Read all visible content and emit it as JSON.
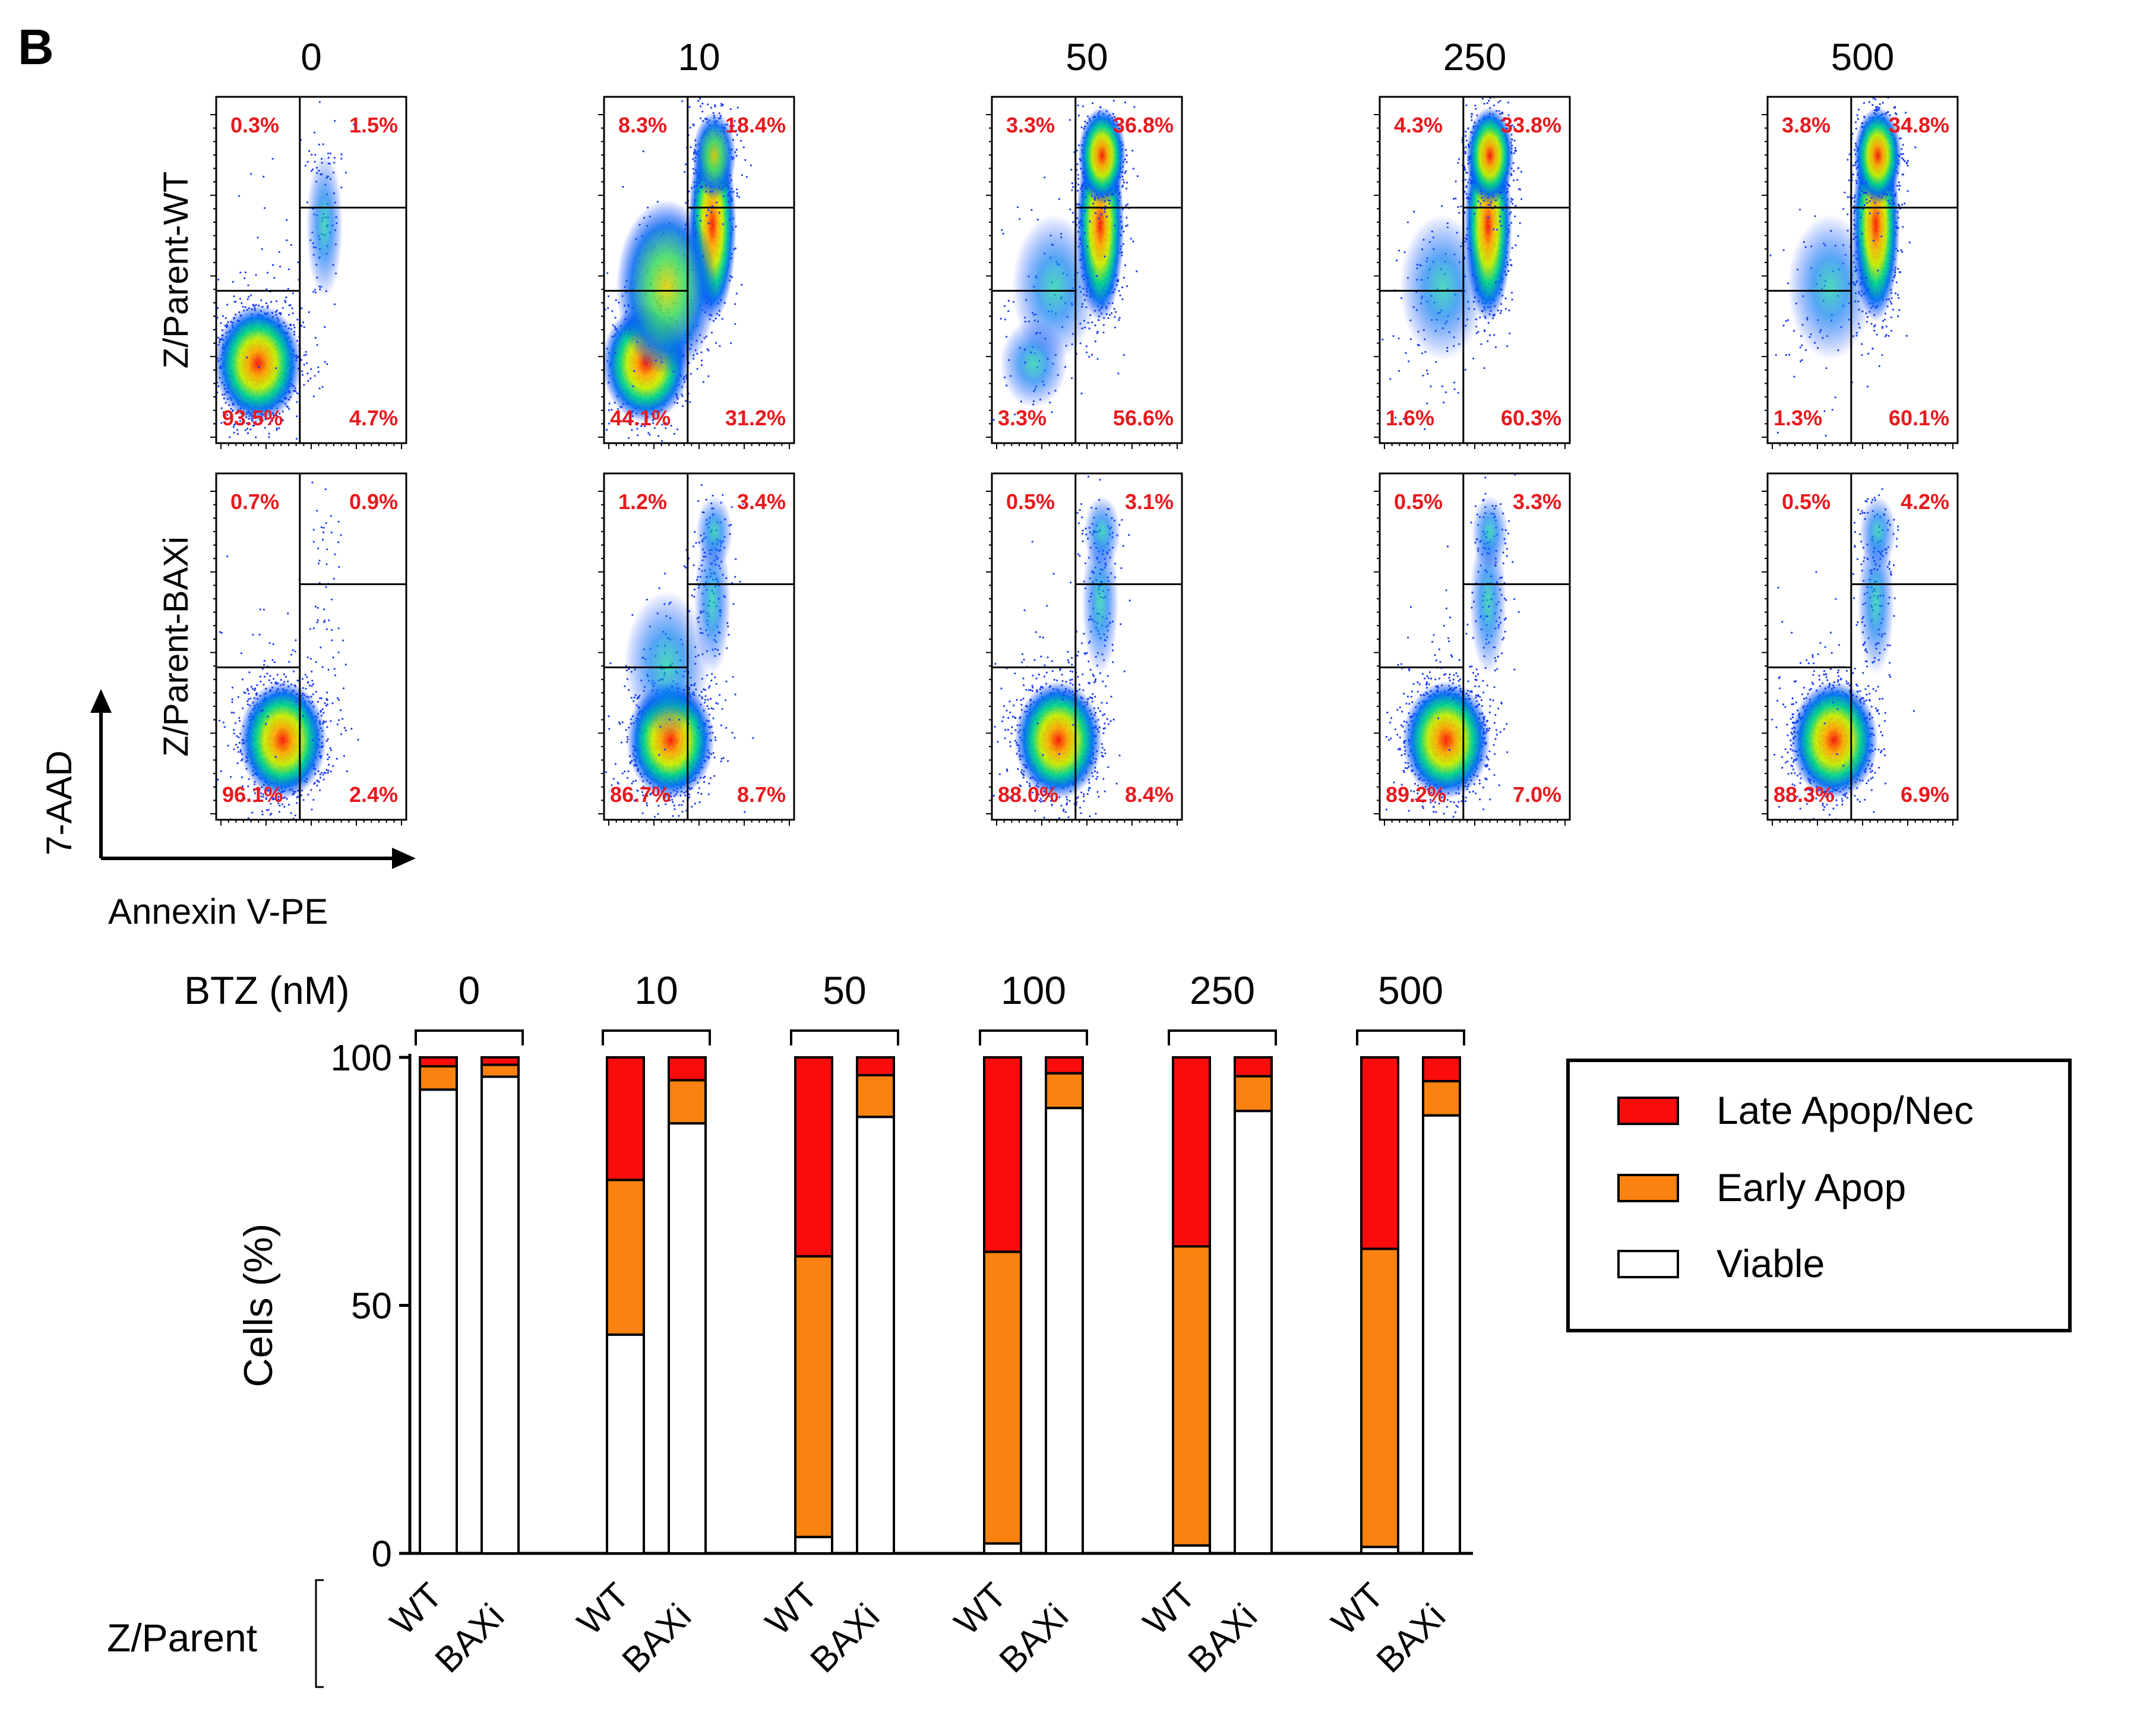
{
  "panel_label": "B",
  "flow": {
    "conditions": [
      "0",
      "10",
      "50",
      "250",
      "500"
    ],
    "rows": [
      "Z/Parent-WT",
      "Z/Parent-BAXi"
    ],
    "x_axis_label": "Annexin V-PE",
    "y_axis_label": "7-AAD",
    "quadrants": [
      [
        {
          "ul": "0.3%",
          "ur": "1.5%",
          "ll": "93.5%",
          "lr": "4.7%"
        },
        {
          "ul": "8.3%",
          "ur": "18.4%",
          "ll": "44.1%",
          "lr": "31.2%"
        },
        {
          "ul": "3.3%",
          "ur": "36.8%",
          "ll": "3.3%",
          "lr": "56.6%"
        },
        {
          "ul": "4.3%",
          "ur": "33.8%",
          "ll": "1.6%",
          "lr": "60.3%"
        },
        {
          "ul": "3.8%",
          "ur": "34.8%",
          "ll": "1.3%",
          "lr": "60.1%"
        }
      ],
      [
        {
          "ul": "0.7%",
          "ur": "0.9%",
          "ll": "96.1%",
          "lr": "2.4%"
        },
        {
          "ul": "1.2%",
          "ur": "3.4%",
          "ll": "86.7%",
          "lr": "8.7%"
        },
        {
          "ul": "0.5%",
          "ur": "3.1%",
          "ll": "88.0%",
          "lr": "8.4%"
        },
        {
          "ul": "0.5%",
          "ur": "3.3%",
          "ll": "89.2%",
          "lr": "7.0%"
        },
        {
          "ul": "0.5%",
          "ur": "4.2%",
          "ll": "88.3%",
          "lr": "6.9%"
        }
      ]
    ]
  },
  "chart_data": {
    "type": "bar",
    "stacked": true,
    "group_header_label": "BTZ (nM)",
    "groups": [
      "0",
      "10",
      "50",
      "100",
      "250",
      "500"
    ],
    "categories_label": "Z/Parent",
    "categories": [
      "WT",
      "BAXi"
    ],
    "ylabel": "Cells (%)",
    "ylim": [
      0,
      100
    ],
    "yticks": [
      "0",
      "50",
      "100"
    ],
    "series": [
      {
        "name": "Viable",
        "color": "#ffffff",
        "values": [
          [
            93.5,
            96.1
          ],
          [
            44.1,
            86.7
          ],
          [
            3.3,
            88.0
          ],
          [
            2.0,
            89.8
          ],
          [
            1.6,
            89.2
          ],
          [
            1.3,
            88.3
          ]
        ]
      },
      {
        "name": "Early Apop",
        "color": "#f98210",
        "values": [
          [
            4.7,
            2.4
          ],
          [
            31.2,
            8.7
          ],
          [
            56.6,
            8.4
          ],
          [
            58.8,
            7.0
          ],
          [
            60.3,
            7.0
          ],
          [
            60.1,
            6.9
          ]
        ]
      },
      {
        "name": "Late Apop/Nec",
        "color": "#fb0c0c",
        "values": [
          [
            1.8,
            1.5
          ],
          [
            24.7,
            4.6
          ],
          [
            40.1,
            3.6
          ],
          [
            39.2,
            3.2
          ],
          [
            38.1,
            3.8
          ],
          [
            38.6,
            4.8
          ]
        ]
      }
    ],
    "legend_order": [
      "Late Apop/Nec",
      "Early Apop",
      "Viable"
    ],
    "legend_position": "right"
  }
}
